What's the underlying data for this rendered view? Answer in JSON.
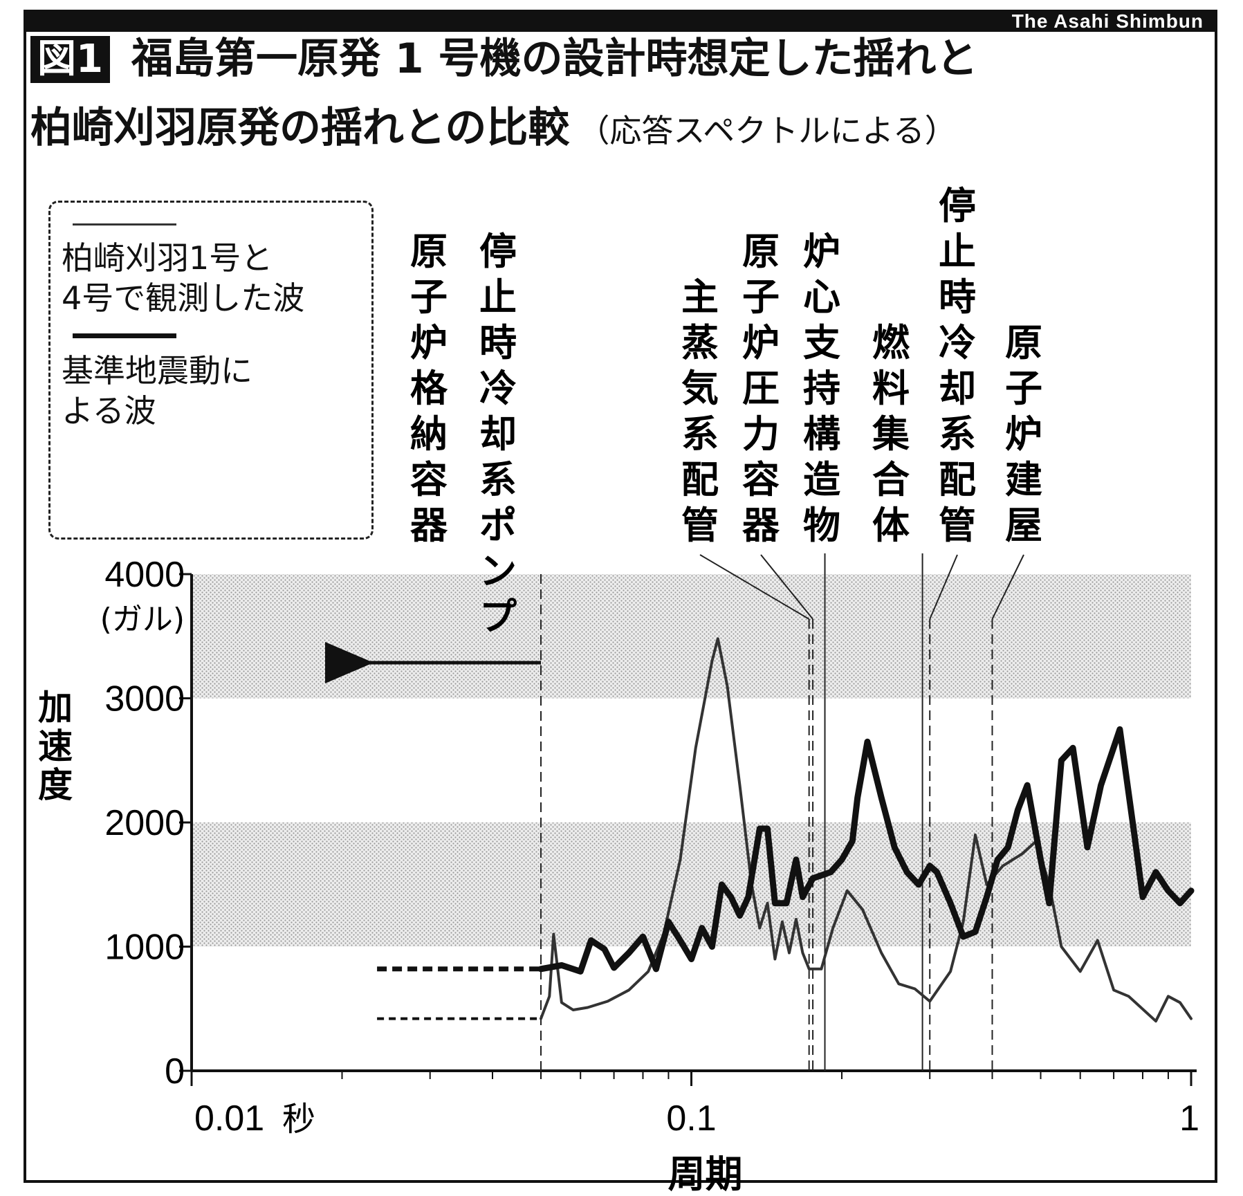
{
  "credit": "The Asahi Shimbun",
  "figure_badge": "図1",
  "title_line1": "福島第一原発 1 号機の設計時想定した揺れと",
  "title_line2": "柏崎刈羽原発の揺れとの比較",
  "subtitle": "（応答スペクトルによる）",
  "legend": {
    "observed_label": "柏崎刈羽1号と\n4号で観測した波",
    "design_label": "基準地震動に\nよる波"
  },
  "chart_data": {
    "type": "line",
    "xlabel": "周期",
    "x_unit": "秒",
    "ylabel": "加速度",
    "y_unit": "(ガル)",
    "x_scale": "log",
    "xlim": [
      0.01,
      1
    ],
    "ylim": [
      0,
      4000
    ],
    "x_ticks": [
      {
        "value": 0.01,
        "label": "0.01"
      },
      {
        "value": 0.1,
        "label": "0.1"
      },
      {
        "value": 1,
        "label": "1"
      }
    ],
    "y_ticks": [
      0,
      1000,
      2000,
      3000,
      4000
    ],
    "y_top_tick_label": "4000",
    "shaded_bands": [
      [
        1000,
        2000
      ],
      [
        3000,
        4000
      ]
    ],
    "series": [
      {
        "key": "observed",
        "style": "thin",
        "extends_left_to": 0.0235,
        "points": [
          [
            0.05,
            420
          ],
          [
            0.052,
            600
          ],
          [
            0.053,
            1100
          ],
          [
            0.055,
            550
          ],
          [
            0.058,
            490
          ],
          [
            0.062,
            510
          ],
          [
            0.068,
            560
          ],
          [
            0.075,
            650
          ],
          [
            0.082,
            800
          ],
          [
            0.088,
            1100
          ],
          [
            0.095,
            1700
          ],
          [
            0.102,
            2600
          ],
          [
            0.11,
            3300
          ],
          [
            0.113,
            3480
          ],
          [
            0.118,
            3100
          ],
          [
            0.125,
            2300
          ],
          [
            0.132,
            1500
          ],
          [
            0.137,
            1150
          ],
          [
            0.142,
            1350
          ],
          [
            0.147,
            900
          ],
          [
            0.152,
            1200
          ],
          [
            0.157,
            950
          ],
          [
            0.162,
            1220
          ],
          [
            0.167,
            950
          ],
          [
            0.172,
            820
          ],
          [
            0.182,
            820
          ],
          [
            0.192,
            1150
          ],
          [
            0.205,
            1450
          ],
          [
            0.22,
            1300
          ],
          [
            0.24,
            950
          ],
          [
            0.26,
            700
          ],
          [
            0.28,
            660
          ],
          [
            0.3,
            560
          ],
          [
            0.33,
            800
          ],
          [
            0.35,
            1200
          ],
          [
            0.37,
            1900
          ],
          [
            0.39,
            1500
          ],
          [
            0.42,
            1650
          ],
          [
            0.46,
            1750
          ],
          [
            0.49,
            1850
          ],
          [
            0.52,
            1500
          ],
          [
            0.55,
            1000
          ],
          [
            0.6,
            800
          ],
          [
            0.65,
            1050
          ],
          [
            0.7,
            650
          ],
          [
            0.75,
            600
          ],
          [
            0.85,
            400
          ],
          [
            0.9,
            600
          ],
          [
            0.95,
            550
          ],
          [
            1.0,
            420
          ]
        ]
      },
      {
        "key": "design",
        "style": "thick",
        "extends_left_to": 0.0235,
        "points": [
          [
            0.05,
            820
          ],
          [
            0.055,
            850
          ],
          [
            0.06,
            800
          ],
          [
            0.063,
            1050
          ],
          [
            0.067,
            980
          ],
          [
            0.07,
            830
          ],
          [
            0.075,
            950
          ],
          [
            0.08,
            1080
          ],
          [
            0.085,
            820
          ],
          [
            0.09,
            1200
          ],
          [
            0.095,
            1050
          ],
          [
            0.1,
            900
          ],
          [
            0.105,
            1150
          ],
          [
            0.11,
            1000
          ],
          [
            0.115,
            1500
          ],
          [
            0.12,
            1400
          ],
          [
            0.125,
            1250
          ],
          [
            0.13,
            1400
          ],
          [
            0.137,
            1950
          ],
          [
            0.142,
            1950
          ],
          [
            0.147,
            1350
          ],
          [
            0.155,
            1350
          ],
          [
            0.162,
            1700
          ],
          [
            0.167,
            1400
          ],
          [
            0.175,
            1550
          ],
          [
            0.19,
            1600
          ],
          [
            0.2,
            1700
          ],
          [
            0.21,
            1850
          ],
          [
            0.215,
            2200
          ],
          [
            0.225,
            2650
          ],
          [
            0.24,
            2200
          ],
          [
            0.255,
            1800
          ],
          [
            0.27,
            1600
          ],
          [
            0.285,
            1500
          ],
          [
            0.3,
            1650
          ],
          [
            0.31,
            1600
          ],
          [
            0.33,
            1350
          ],
          [
            0.35,
            1080
          ],
          [
            0.37,
            1120
          ],
          [
            0.39,
            1400
          ],
          [
            0.41,
            1700
          ],
          [
            0.43,
            1800
          ],
          [
            0.45,
            2100
          ],
          [
            0.47,
            2300
          ],
          [
            0.5,
            1700
          ],
          [
            0.52,
            1350
          ],
          [
            0.55,
            2500
          ],
          [
            0.58,
            2600
          ],
          [
            0.62,
            1800
          ],
          [
            0.66,
            2300
          ],
          [
            0.72,
            2750
          ],
          [
            0.77,
            1900
          ],
          [
            0.8,
            1400
          ],
          [
            0.85,
            1600
          ],
          [
            0.9,
            1450
          ],
          [
            0.95,
            1350
          ],
          [
            1.0,
            1450
          ]
        ]
      }
    ],
    "component_markers": [
      {
        "label": "原子炉格納容器",
        "period": 0.05
      },
      {
        "label": "停止時冷却系ポンプ",
        "period": 0.05
      },
      {
        "label": "主蒸気系配管",
        "period": 0.172
      },
      {
        "label": "原子炉圧力容器",
        "period": 0.175
      },
      {
        "label": "炉心支持構造物",
        "period": 0.185
      },
      {
        "label": "燃料集合体",
        "period": 0.29
      },
      {
        "label": "停止時冷却系配管",
        "period": 0.3
      },
      {
        "label": "原子炉建屋",
        "period": 0.4
      }
    ]
  }
}
